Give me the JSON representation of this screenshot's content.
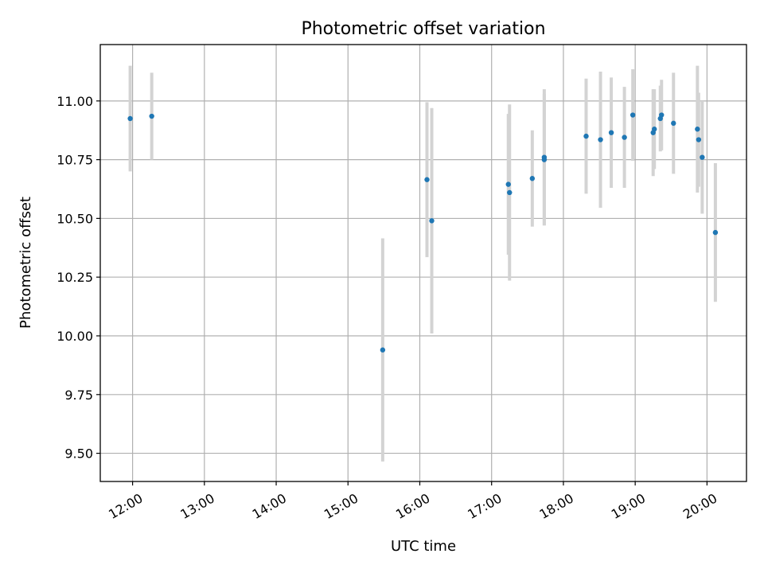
{
  "chart_data": {
    "type": "scatter",
    "title": "Photometric offset variation",
    "xlabel": "UTC time",
    "ylabel": "Photometric offset",
    "x_ticks": [
      "12:00",
      "13:00",
      "14:00",
      "15:00",
      "16:00",
      "17:00",
      "18:00",
      "19:00",
      "20:00"
    ],
    "y_ticks": [
      "9.50",
      "9.75",
      "10.00",
      "10.25",
      "10.50",
      "10.75",
      "11.00"
    ],
    "xlim": [
      "11:33",
      "20:33"
    ],
    "ylim": [
      9.38,
      11.24
    ],
    "grid": true,
    "colors": {
      "point": "#1f77b4",
      "errorbar": "#d3d3d3"
    },
    "points": [
      {
        "x": "11:58",
        "y": 10.925,
        "err": 0.225
      },
      {
        "x": "12:16",
        "y": 10.935,
        "err": 0.185
      },
      {
        "x": "15:29",
        "y": 9.94,
        "err": 0.475
      },
      {
        "x": "16:06",
        "y": 10.665,
        "err": 0.33
      },
      {
        "x": "16:10",
        "y": 10.49,
        "err": 0.48
      },
      {
        "x": "17:14",
        "y": 10.645,
        "err": 0.3
      },
      {
        "x": "17:15",
        "y": 10.61,
        "err": 0.375
      },
      {
        "x": "17:34",
        "y": 10.67,
        "err": 0.205
      },
      {
        "x": "17:44",
        "y": 10.76,
        "err": 0.29
      },
      {
        "x": "17:44",
        "y": 10.75,
        "err": 0.28
      },
      {
        "x": "18:19",
        "y": 10.85,
        "err": 0.245
      },
      {
        "x": "18:31",
        "y": 10.835,
        "err": 0.29
      },
      {
        "x": "18:40",
        "y": 10.865,
        "err": 0.235
      },
      {
        "x": "18:51",
        "y": 10.845,
        "err": 0.215
      },
      {
        "x": "18:58",
        "y": 10.94,
        "err": 0.195
      },
      {
        "x": "19:15",
        "y": 10.865,
        "err": 0.185
      },
      {
        "x": "19:16",
        "y": 10.88,
        "err": 0.17
      },
      {
        "x": "19:21",
        "y": 10.925,
        "err": 0.14
      },
      {
        "x": "19:22",
        "y": 10.94,
        "err": 0.15
      },
      {
        "x": "19:32",
        "y": 10.905,
        "err": 0.215
      },
      {
        "x": "19:52",
        "y": 10.88,
        "err": 0.27
      },
      {
        "x": "19:53",
        "y": 10.835,
        "err": 0.2
      },
      {
        "x": "19:56",
        "y": 10.76,
        "err": 0.24
      },
      {
        "x": "20:07",
        "y": 10.44,
        "err": 0.295
      }
    ]
  }
}
